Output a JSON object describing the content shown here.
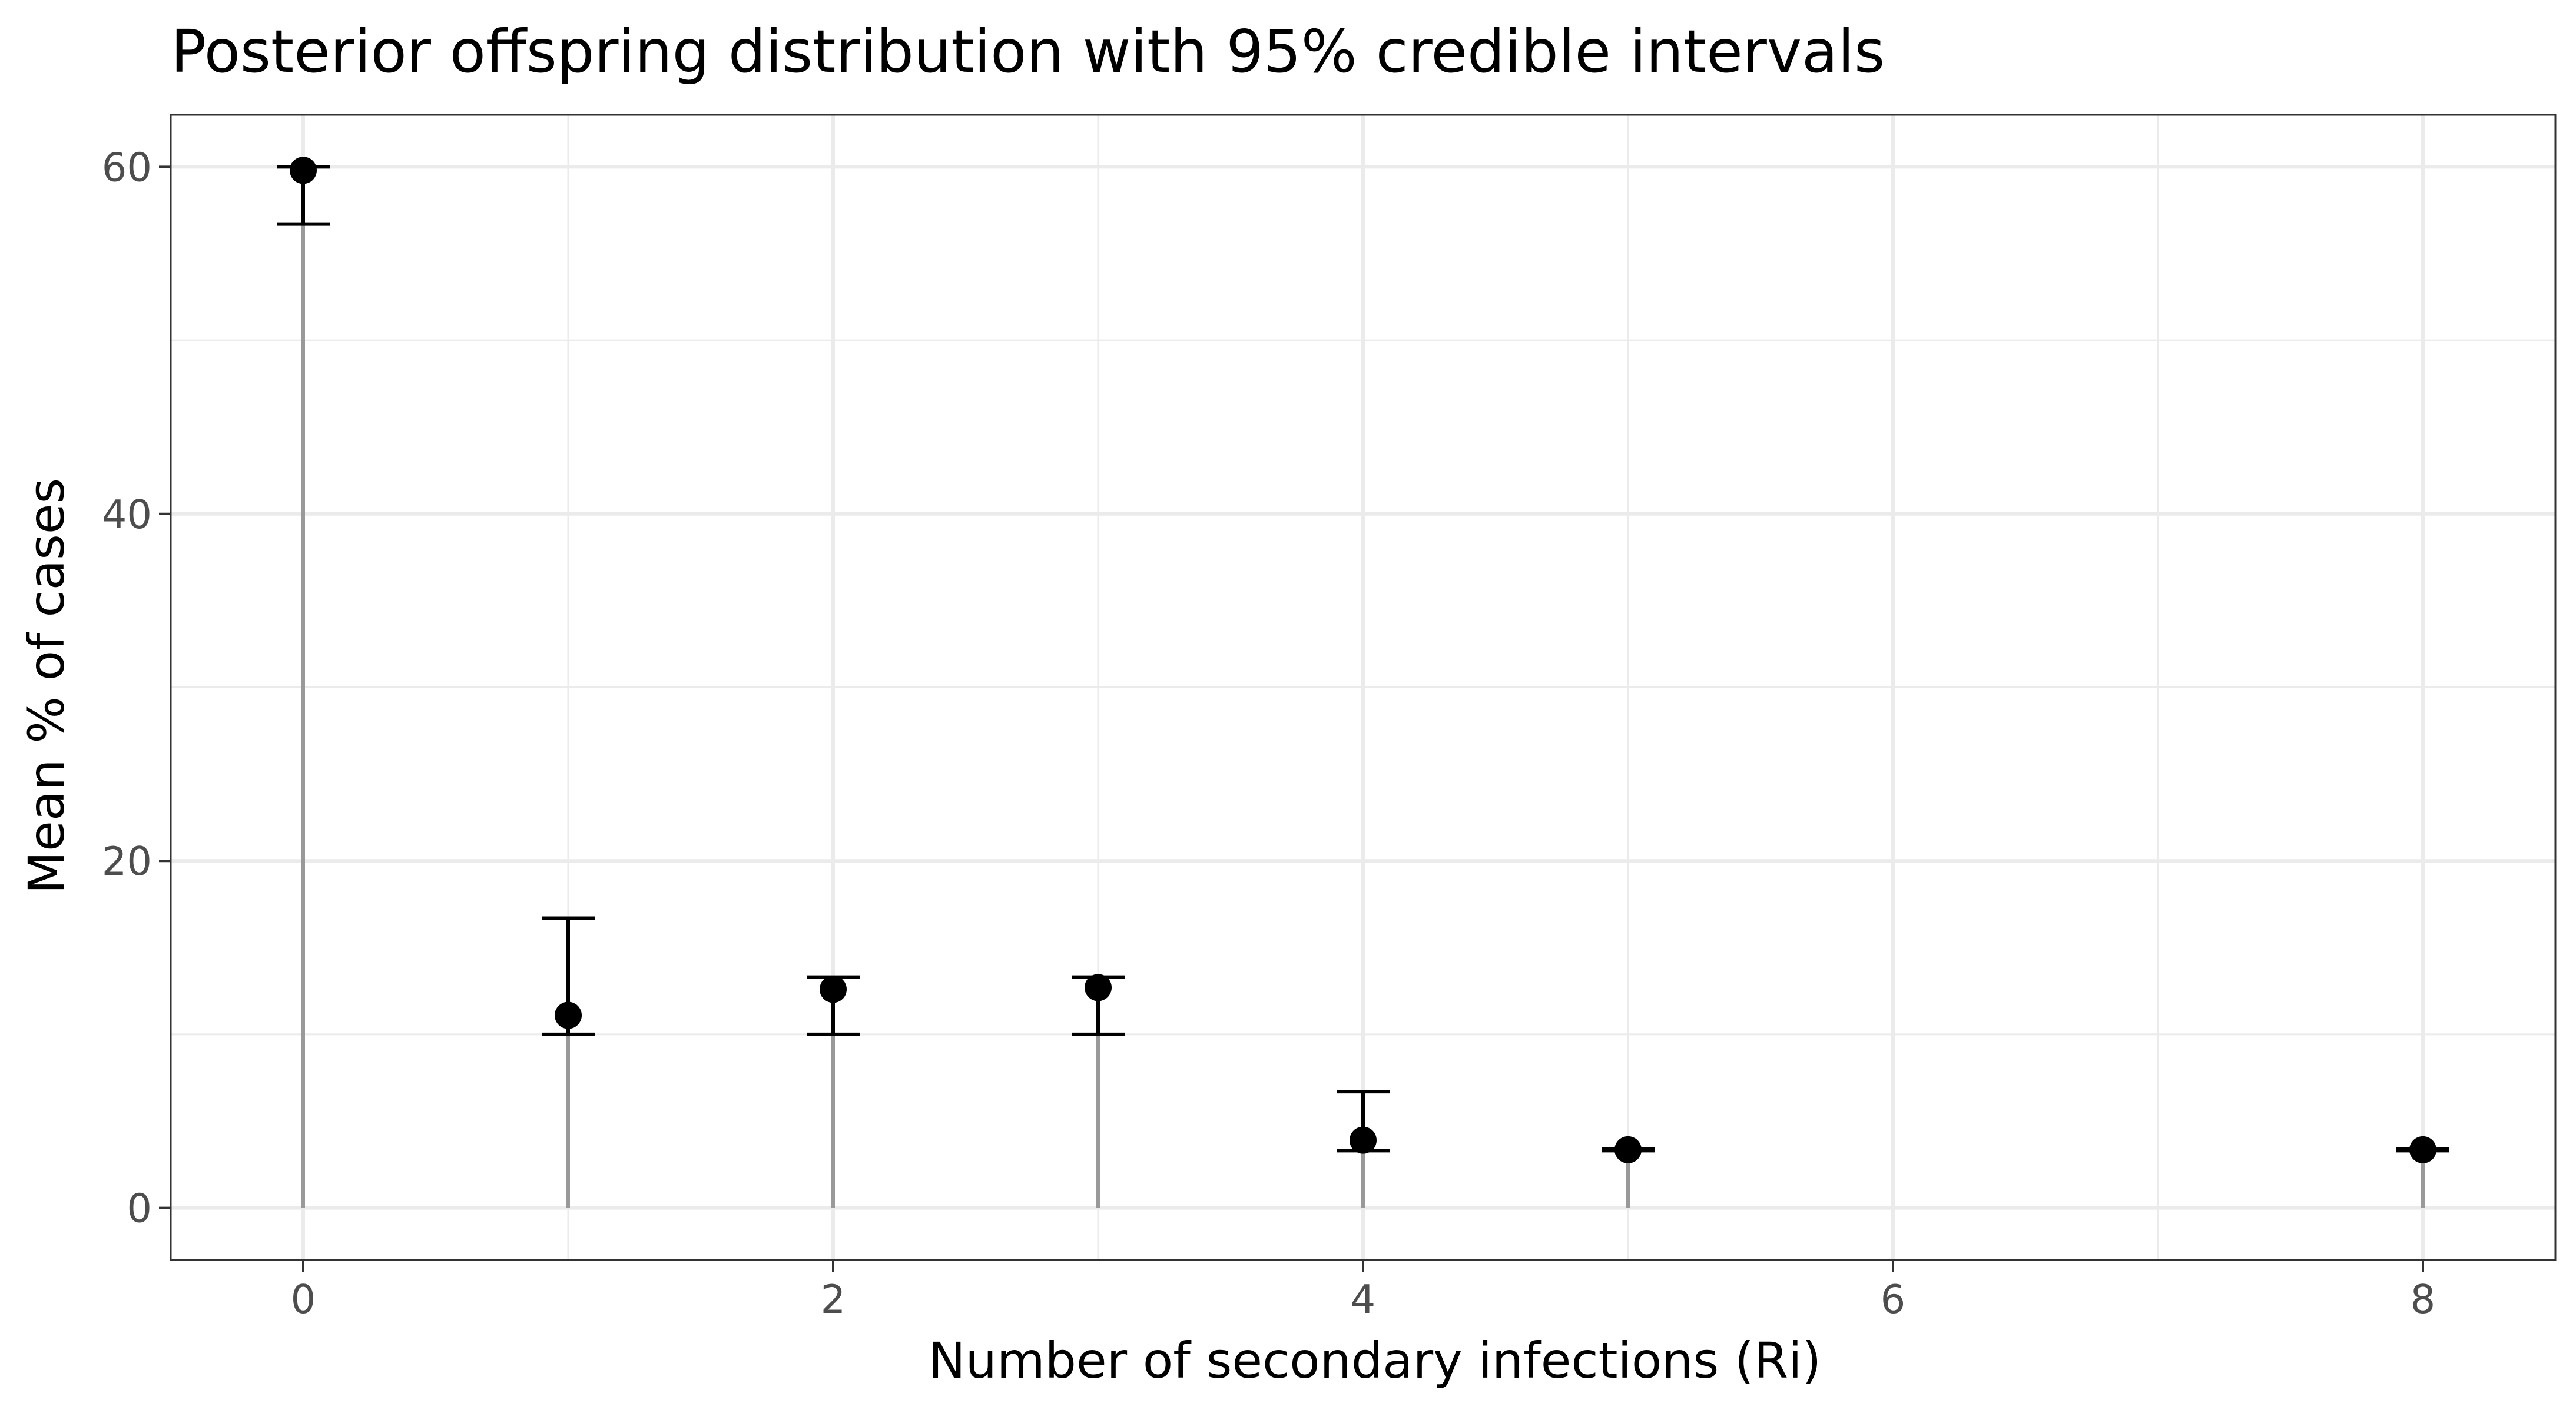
{
  "chart_data": {
    "type": "scatter",
    "title": "Posterior offspring distribution with 95% credible intervals",
    "xlabel": "Number of secondary infections (Ri)",
    "ylabel": "Mean % of cases",
    "xlim": [
      -0.5,
      8.5
    ],
    "ylim": [
      -3,
      63
    ],
    "x_ticks": [
      0,
      2,
      4,
      6,
      8
    ],
    "y_ticks": [
      0,
      20,
      40,
      60
    ],
    "grid": true,
    "colors": {
      "point": "#000000",
      "errorbar": "#000000",
      "stem": "#999999",
      "grid": "#ebebeb",
      "panel_border": "#333333"
    },
    "points": [
      {
        "x": 0,
        "y": 59.8,
        "lower": 56.7,
        "upper": 60.0
      },
      {
        "x": 1,
        "y": 11.1,
        "lower": 10.0,
        "upper": 16.7
      },
      {
        "x": 2,
        "y": 12.6,
        "lower": 10.0,
        "upper": 13.3
      },
      {
        "x": 3,
        "y": 12.7,
        "lower": 10.0,
        "upper": 13.3
      },
      {
        "x": 4,
        "y": 3.9,
        "lower": 3.3,
        "upper": 6.7
      },
      {
        "x": 5,
        "y": 3.35,
        "lower": 3.3,
        "upper": 3.4
      },
      {
        "x": 8,
        "y": 3.35,
        "lower": 3.3,
        "upper": 3.4
      }
    ]
  }
}
